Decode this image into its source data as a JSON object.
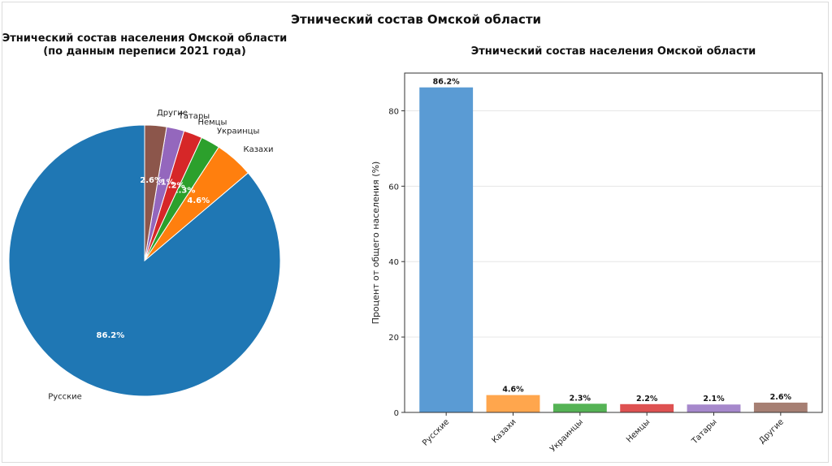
{
  "suptitle": "Этнический состав Омской области",
  "pie": {
    "title_line1": "Этнический состав населения Омской области",
    "title_line2": "(по данным переписи 2021 года)"
  },
  "bar": {
    "title": "Этнический состав населения Омской области",
    "ylabel": "Процент от общего населения (%)"
  },
  "chart_data": [
    {
      "type": "pie",
      "title": "Этнический состав населения Омской области (по данным переписи 2021 года)",
      "categories": [
        "Русские",
        "Казахи",
        "Украинцы",
        "Немцы",
        "Татары",
        "Другие"
      ],
      "values": [
        86.2,
        4.6,
        2.3,
        2.2,
        2.1,
        2.6
      ],
      "value_labels": [
        "86.2%",
        "4.6%",
        "2.3%",
        "2.2%",
        "2.1%",
        "2.6%"
      ],
      "colors": [
        "#1f77b4",
        "#ff7f0e",
        "#2ca02c",
        "#d62728",
        "#9467bd",
        "#8c564b"
      ]
    },
    {
      "type": "bar",
      "title": "Этнический состав населения Омской области",
      "xlabel": "",
      "ylabel": "Процент от общего населения (%)",
      "categories": [
        "Русские",
        "Казахи",
        "Украинцы",
        "Немцы",
        "Татары",
        "Другие"
      ],
      "values": [
        86.2,
        4.6,
        2.3,
        2.2,
        2.1,
        2.6
      ],
      "value_labels": [
        "86.2%",
        "4.6%",
        "2.3%",
        "2.2%",
        "2.1%",
        "2.6%"
      ],
      "ylim": [
        0,
        90
      ],
      "yticks": [
        "0",
        "20",
        "40",
        "60",
        "80"
      ],
      "grid": "horizontal",
      "colors": [
        "#5a9bd4",
        "#ffa64d",
        "#55b355",
        "#de5151",
        "#a688cc",
        "#a67f73"
      ]
    }
  ]
}
